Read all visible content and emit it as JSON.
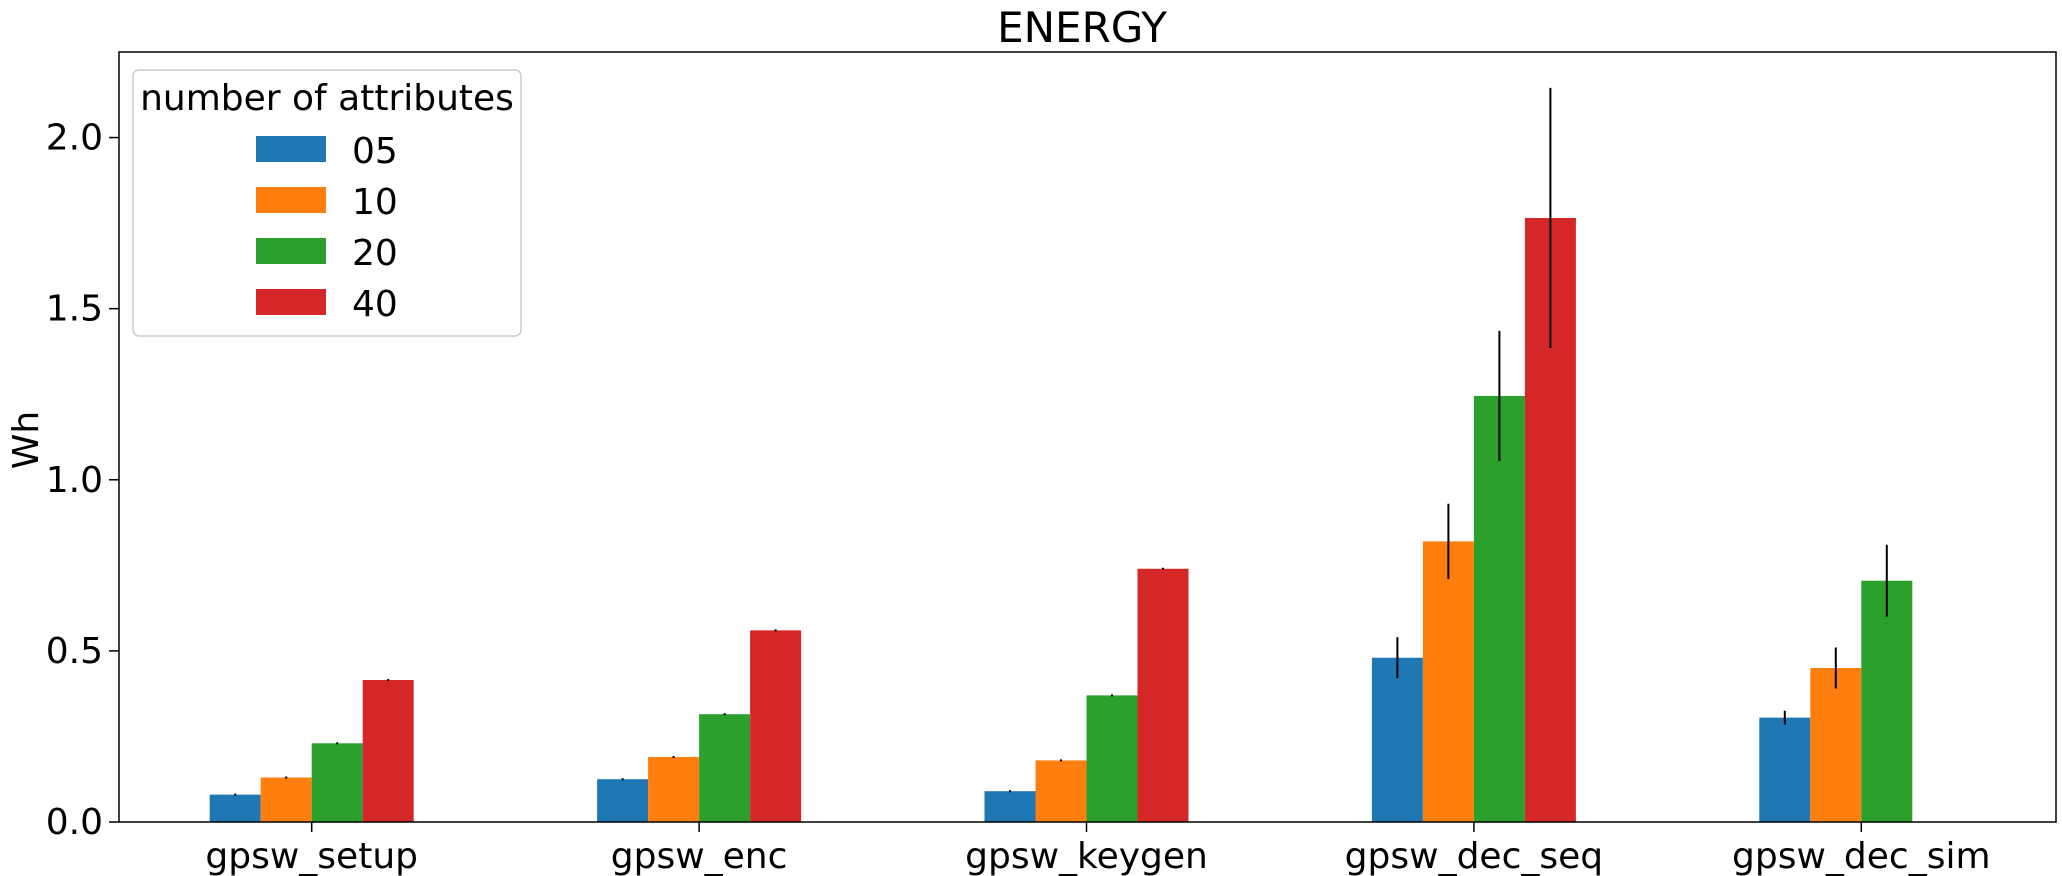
{
  "chart_data": {
    "type": "bar",
    "title": "ENERGY",
    "xlabel": "",
    "ylabel": "Wh",
    "ylim": [
      0,
      2.25
    ],
    "yticks": [
      "0.0",
      "0.5",
      "1.0",
      "1.5",
      "2.0"
    ],
    "categories": [
      "gpsw_setup",
      "gpsw_enc",
      "gpsw_keygen",
      "gpsw_dec_seq",
      "gpsw_dec_sim"
    ],
    "legend": {
      "title": "number of attributes",
      "position": "top-left"
    },
    "grid": false,
    "series": [
      {
        "name": "05",
        "color": "#1f77b4",
        "values": [
          0.08,
          0.125,
          0.09,
          0.48,
          0.305
        ],
        "errors": [
          0.003,
          0.003,
          0.003,
          0.06,
          0.02
        ]
      },
      {
        "name": "10",
        "color": "#ff7f0e",
        "values": [
          0.13,
          0.19,
          0.18,
          0.82,
          0.45
        ],
        "errors": [
          0.003,
          0.003,
          0.003,
          0.11,
          0.06
        ]
      },
      {
        "name": "20",
        "color": "#2ca02c",
        "values": [
          0.23,
          0.315,
          0.37,
          1.245,
          0.705
        ],
        "errors": [
          0.003,
          0.003,
          0.003,
          0.19,
          0.105
        ]
      },
      {
        "name": "40",
        "color": "#d62728",
        "values": [
          0.415,
          0.56,
          0.74,
          1.765,
          null
        ],
        "errors": [
          0.003,
          0.003,
          0.003,
          0.38,
          0
        ]
      }
    ]
  }
}
